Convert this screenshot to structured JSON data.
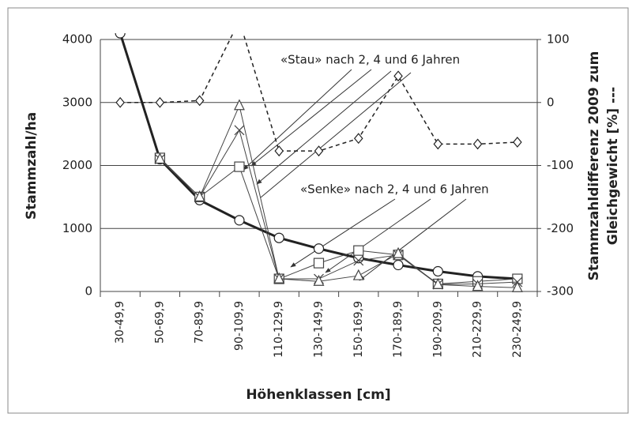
{
  "chart_data": {
    "type": "line",
    "categories": [
      "30-49,9",
      "50-69,9",
      "70-89,9",
      "90-109,9",
      "110-129,9",
      "130-149,9",
      "150-169,9",
      "170-189,9",
      "190-209,9",
      "210-229,9",
      "230-249,9"
    ],
    "series": [
      {
        "color": "#222222",
        "style": "thick",
        "marker": "circle",
        "values": [
          4100,
          2100,
          1450,
          1130,
          850,
          680,
          530,
          420,
          320,
          240,
          200
        ]
      },
      {
        "color": "#444444",
        "style": "thin",
        "marker": "square",
        "values": [
          null,
          2120,
          1500,
          1980,
          200,
          450,
          650,
          580,
          120,
          160,
          200
        ]
      },
      {
        "color": "#444444",
        "style": "thin",
        "marker": "cross",
        "values": [
          null,
          2100,
          1500,
          2560,
          200,
          200,
          490,
          580,
          110,
          120,
          150
        ]
      },
      {
        "color": "#444444",
        "style": "thin",
        "marker": "triangle",
        "values": [
          null,
          2100,
          1500,
          2950,
          200,
          160,
          250,
          600,
          110,
          80,
          60
        ]
      },
      {
        "color": "#222222",
        "style": "dashed",
        "marker": "diamond",
        "axis": "y2",
        "values": [
          0,
          0,
          3,
          130,
          -77,
          -77,
          -57,
          42,
          -66,
          -66,
          -63
        ]
      }
    ],
    "ylim": [
      0,
      4000
    ],
    "yticks": [
      0,
      1000,
      2000,
      3000,
      4000
    ],
    "y2lim": [
      -300,
      100
    ],
    "y2ticks": [
      -300,
      -200,
      -100,
      0,
      100
    ],
    "grid": true,
    "y_label": "Stammzahl/ha",
    "y2_label": [
      "Stammzahldifferenz 2009 zum",
      "Gleichgewicht [%] ---"
    ],
    "x_label": "Höhenklassen [cm]",
    "annotations": [
      "«Stau» nach 2, 4 und 6 Jahren",
      "«Senke» nach 2, 4 und 6 Jahren"
    ]
  }
}
